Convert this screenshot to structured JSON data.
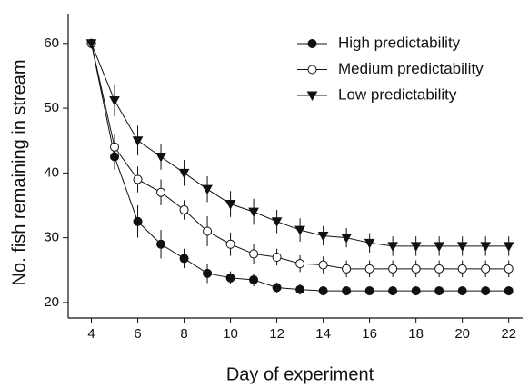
{
  "chart_data": {
    "type": "line",
    "x_label": "Day of experiment",
    "y_label": "No. fish remaining in stream",
    "x": [
      4,
      5,
      6,
      7,
      8,
      9,
      10,
      11,
      12,
      13,
      14,
      15,
      16,
      17,
      18,
      19,
      20,
      21,
      22
    ],
    "xlim": [
      3,
      22.6
    ],
    "ylim": [
      17.6,
      64.6
    ],
    "xticks": [
      4,
      6,
      8,
      10,
      12,
      14,
      16,
      18,
      20,
      22
    ],
    "yticks": [
      20,
      30,
      40,
      50,
      60
    ],
    "legend": "upper right",
    "series": [
      {
        "name": "High predictability",
        "color": "#111111",
        "marker": "filled-circle",
        "values": [
          60,
          42.5,
          32.5,
          29,
          26.8,
          24.5,
          23.8,
          23.5,
          22.3,
          22,
          21.8,
          21.8,
          21.8,
          21.8,
          21.8,
          21.8,
          21.8,
          21.8,
          21.8
        ],
        "errors": [
          0,
          2,
          2.5,
          2.2,
          1.5,
          1.5,
          1,
          1,
          0.8,
          0.8,
          0.7,
          0.7,
          0.7,
          0.7,
          0.7,
          0.7,
          0.7,
          0.7,
          0.7
        ]
      },
      {
        "name": "Medium predictability",
        "color": "#111111",
        "marker": "open-circle",
        "values": [
          60,
          44,
          39,
          37,
          34.3,
          31,
          29,
          27.5,
          27,
          26,
          25.8,
          25.2,
          25.2,
          25.2,
          25.2,
          25.2,
          25.2,
          25.2,
          25.2
        ],
        "errors": [
          0,
          2,
          2,
          2,
          1.5,
          2.3,
          1.8,
          1.5,
          1.3,
          1.3,
          1.3,
          1.3,
          1.3,
          1.3,
          1.3,
          1.3,
          1.3,
          1.3,
          1.3
        ]
      },
      {
        "name": "Low predictability",
        "color": "#111111",
        "marker": "triangle-down",
        "values": [
          60,
          51.2,
          45,
          42.5,
          40,
          37.5,
          35.2,
          34,
          32.5,
          31.2,
          30.3,
          30,
          29.2,
          28.7,
          28.7,
          28.7,
          28.7,
          28.7,
          28.7
        ],
        "errors": [
          0,
          2.5,
          2.3,
          2,
          2,
          2,
          2,
          2,
          1.8,
          1.8,
          1.5,
          1.5,
          1.5,
          1.5,
          1.5,
          1.5,
          1.5,
          1.5,
          1.5
        ]
      }
    ]
  }
}
